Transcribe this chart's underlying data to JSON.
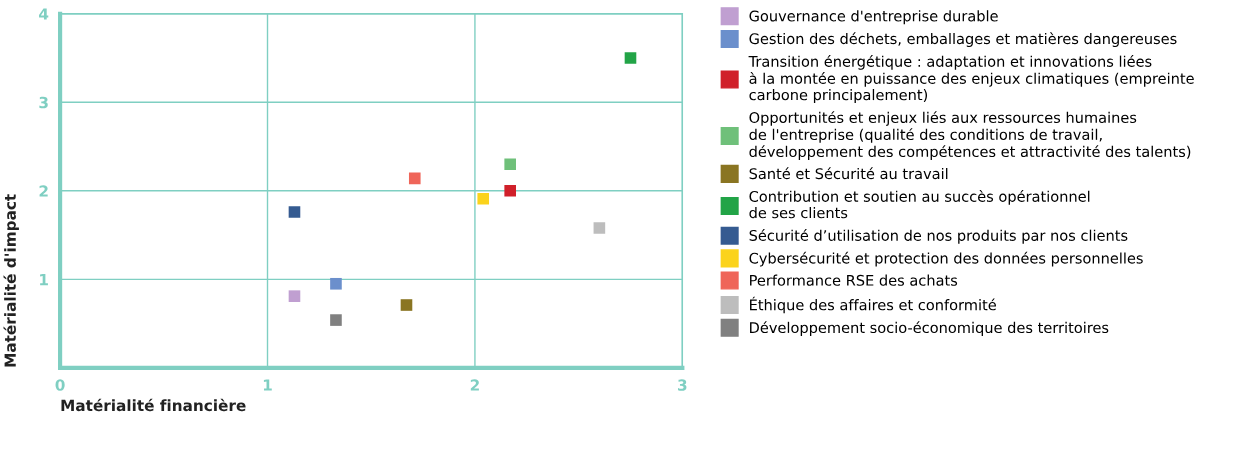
{
  "chart_data": {
    "type": "scatter",
    "xlabel": "Matérialité financière",
    "ylabel": "Matérialité d'impact",
    "xlim": [
      0,
      3
    ],
    "ylim": [
      0,
      4
    ],
    "xticks": [
      0,
      1,
      2,
      3
    ],
    "yticks": [
      {
        "value": 0,
        "label": null
      },
      1,
      2,
      3,
      4
    ],
    "grid": true,
    "legend": "right",
    "marker": "square",
    "series": [
      {
        "name": "Gouvernance d'entreprise durable",
        "color": "#c09fd1",
        "x": [
          1.13
        ],
        "values": [
          0.81
        ]
      },
      {
        "name": "Gestion des déchets, emballages et matières dangereuses",
        "color": "#6b8fcc",
        "x": [
          1.33
        ],
        "values": [
          0.95
        ]
      },
      {
        "name": "Transition énergétique : adaptation et innovations liées\nà la montée en puissance des enjeux climatiques (empreinte\ncarbone principalement)",
        "color": "#d0202a",
        "x": [
          2.17
        ],
        "values": [
          2.0
        ]
      },
      {
        "name": "Opportunités et enjeux liés aux ressources humaines\nde l'entreprise (qualité des conditions de travail,\ndéveloppement des compétences et attractivité des talents)",
        "color": "#6fc07a",
        "x": [
          2.17
        ],
        "values": [
          2.3
        ]
      },
      {
        "name": "Santé et Sécurité au travail",
        "color": "#8a7522",
        "x": [
          1.67
        ],
        "values": [
          0.71
        ]
      },
      {
        "name": "Contribution et soutien au succès opérationnel\nde ses clients",
        "color": "#22a447",
        "x": [
          2.75
        ],
        "values": [
          3.5
        ]
      },
      {
        "name": "Sécurité d’utilisation de nos produits par nos clients",
        "color": "#355b91",
        "x": [
          1.13
        ],
        "values": [
          1.76
        ]
      },
      {
        "name": "Cybersécurité et protection des données personnelles",
        "color": "#fbd31c",
        "x": [
          2.04
        ],
        "values": [
          1.91
        ]
      },
      {
        "name": "Performance RSE des achats",
        "color": "#ef6559",
        "x": [
          1.71
        ],
        "values": [
          2.14
        ]
      },
      {
        "name": "Éthique des affaires et conformité",
        "color": "#bdbdbd",
        "x": [
          2.6
        ],
        "values": [
          1.58
        ]
      },
      {
        "name": "Développement socio-économique des territoires",
        "color": "#808080",
        "x": [
          1.33
        ],
        "values": [
          0.54
        ]
      }
    ]
  }
}
